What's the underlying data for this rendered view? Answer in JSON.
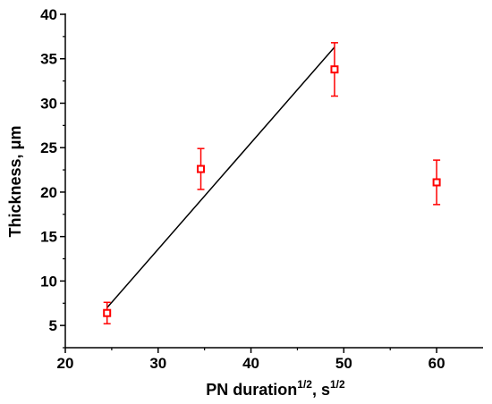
{
  "chart_data": {
    "type": "scatter",
    "title": "",
    "xlabel": {
      "base": "PN duration",
      "base_sup": "1/2",
      "unit": ", s",
      "unit_sup": "1/2"
    },
    "ylabel": "Thickness, μm",
    "xlim": [
      20,
      65
    ],
    "ylim": [
      2.5,
      40
    ],
    "xticks": [
      "20",
      "30",
      "40",
      "50",
      "60"
    ],
    "yticks": [
      "5",
      "10",
      "15",
      "20",
      "25",
      "30",
      "35",
      "40"
    ],
    "xtick_values": [
      20,
      30,
      40,
      50,
      60
    ],
    "ytick_values": [
      5,
      10,
      15,
      20,
      25,
      30,
      35,
      40
    ],
    "grid": false,
    "marker_color": "#ff0000",
    "fit_line_color": "#000000",
    "points": [
      {
        "x": 24.5,
        "y": 6.4,
        "err": 1.2
      },
      {
        "x": 34.6,
        "y": 22.6,
        "err": 2.3
      },
      {
        "x": 49.0,
        "y": 33.8,
        "err": 3.0
      },
      {
        "x": 60.0,
        "y": 21.1,
        "err": 2.5
      }
    ],
    "fit_line": {
      "x": [
        24.5,
        49.0
      ],
      "y": [
        7.0,
        36.3
      ]
    }
  }
}
